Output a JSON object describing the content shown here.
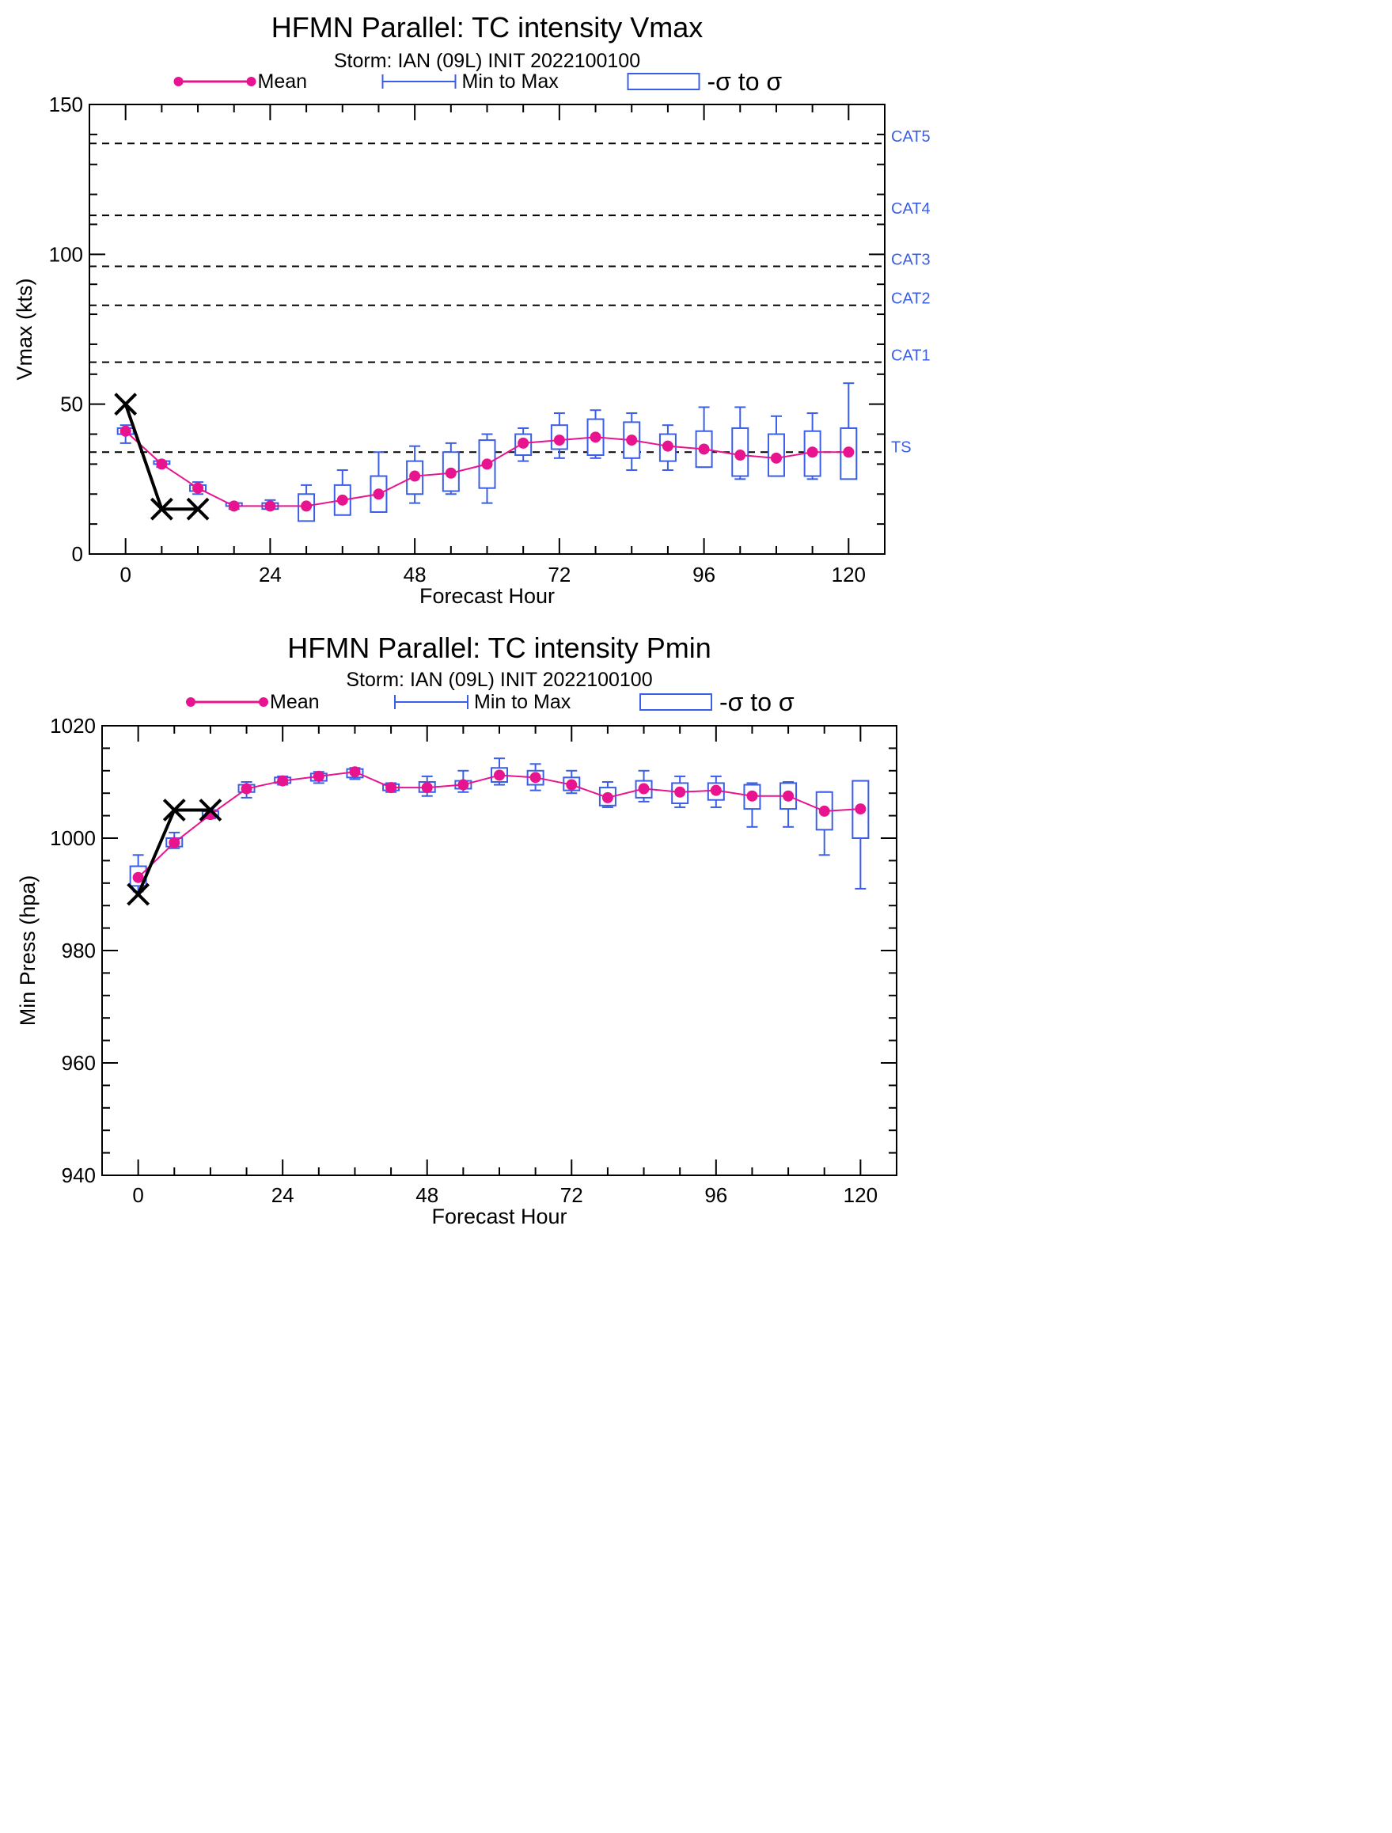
{
  "chart_data": [
    {
      "type": "box",
      "title": "HFMN Parallel: TC intensity Vmax",
      "subtitle": "Storm: IAN (09L) INIT 2022100100",
      "xlabel": "Forecast Hour",
      "ylabel": "Vmax (kts)",
      "xlim": [
        -6,
        126
      ],
      "ylim": [
        0,
        150
      ],
      "xticks": [
        0,
        24,
        48,
        72,
        96,
        120
      ],
      "yticks": [
        0,
        50,
        100,
        150
      ],
      "legend": {
        "placement": "top",
        "entries": [
          "Mean",
          "Min to Max",
          "-σ to σ"
        ]
      },
      "reference_lines": [
        {
          "label": "TS",
          "value": 34
        },
        {
          "label": "CAT1",
          "value": 64
        },
        {
          "label": "CAT2",
          "value": 83
        },
        {
          "label": "CAT3",
          "value": 96
        },
        {
          "label": "CAT4",
          "value": 113
        },
        {
          "label": "CAT5",
          "value": 137
        }
      ],
      "x": [
        0,
        6,
        12,
        18,
        24,
        30,
        36,
        42,
        48,
        54,
        60,
        66,
        72,
        78,
        84,
        90,
        96,
        102,
        108,
        114,
        120
      ],
      "mean": [
        41,
        30,
        22,
        16,
        16,
        16,
        18,
        20,
        26,
        27,
        30,
        37,
        38,
        39,
        38,
        36,
        35,
        33,
        32,
        34,
        34
      ],
      "min": [
        37,
        29,
        20,
        15,
        15,
        13,
        14,
        14,
        17,
        20,
        17,
        31,
        32,
        32,
        28,
        28,
        29,
        25,
        26,
        25,
        26
      ],
      "max": [
        43,
        31,
        24,
        17,
        18,
        23,
        28,
        34,
        36,
        37,
        40,
        42,
        47,
        48,
        47,
        43,
        49,
        49,
        46,
        47,
        57
      ],
      "sd_low": [
        40,
        30,
        21,
        16,
        15,
        11,
        13,
        14,
        20,
        21,
        22,
        33,
        35,
        33,
        32,
        31,
        29,
        26,
        26,
        26,
        25
      ],
      "sd_high": [
        42,
        31,
        23,
        17,
        17,
        20,
        23,
        26,
        31,
        34,
        38,
        40,
        43,
        45,
        44,
        40,
        41,
        42,
        40,
        41,
        42
      ],
      "observed": {
        "x": [
          0,
          6,
          12
        ],
        "values": [
          50,
          15,
          15
        ]
      }
    },
    {
      "type": "box",
      "title": "HFMN Parallel: TC intensity Pmin",
      "subtitle": "Storm: IAN (09L) INIT 2022100100",
      "xlabel": "Forecast Hour",
      "ylabel": "Min Press (hpa)",
      "xlim": [
        -6,
        126
      ],
      "ylim": [
        940,
        1020
      ],
      "xticks": [
        0,
        24,
        48,
        72,
        96,
        120
      ],
      "yticks": [
        940,
        960,
        980,
        1000,
        1020
      ],
      "legend": {
        "placement": "top",
        "entries": [
          "Mean",
          "Min to Max",
          "-σ to σ"
        ]
      },
      "x": [
        0,
        6,
        12,
        18,
        24,
        30,
        36,
        42,
        48,
        54,
        60,
        66,
        72,
        78,
        84,
        90,
        96,
        102,
        108,
        114,
        120
      ],
      "mean": [
        993,
        999.2,
        1004.2,
        1008.8,
        1010.2,
        1011,
        1011.8,
        1009,
        1009,
        1009.5,
        1011.2,
        1010.8,
        1009.5,
        1007.2,
        1008.8,
        1008.2,
        1008.5,
        1007.5,
        1007.5,
        1004.8,
        1005.2
      ],
      "min": [
        990.5,
        998.2,
        1003.5,
        1007.2,
        1009.5,
        1009.8,
        1010.5,
        1008.2,
        1007.5,
        1008.2,
        1009.5,
        1008.5,
        1008,
        1005.5,
        1006.5,
        1005.5,
        1005.5,
        1002,
        1002,
        997,
        991
      ],
      "max": [
        997,
        1001,
        1005,
        1010,
        1011,
        1011.8,
        1012.5,
        1009.8,
        1011,
        1012,
        1014.2,
        1013.2,
        1012,
        1010,
        1012,
        1011,
        1011,
        1009.8,
        1010,
        1008.2,
        1009.5
      ],
      "sd_low": [
        991.5,
        998.5,
        1003.8,
        1008.2,
        1009.8,
        1010.2,
        1010.8,
        1008.5,
        1008.2,
        1008.8,
        1010,
        1009.5,
        1008.5,
        1005.8,
        1007.2,
        1006.2,
        1006.8,
        1005.2,
        1005.2,
        1001.5,
        1000
      ],
      "sd_high": [
        995,
        1000,
        1004.8,
        1009.5,
        1010.8,
        1011.5,
        1012.3,
        1009.6,
        1010,
        1010.2,
        1012.5,
        1012,
        1010.8,
        1009,
        1010.2,
        1009.8,
        1009.8,
        1009.5,
        1009.8,
        1008.2,
        1010.2
      ],
      "observed": {
        "x": [
          0,
          6,
          12
        ],
        "values": [
          990,
          1005,
          1005
        ]
      }
    }
  ]
}
